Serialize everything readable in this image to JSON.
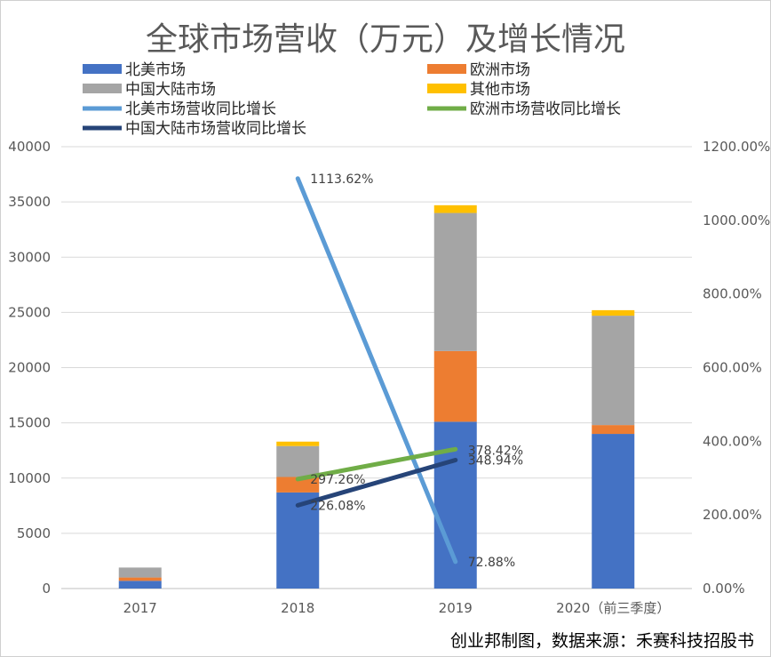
{
  "chart_data": {
    "type": "bar",
    "subtype": "stacked-bar-with-lines",
    "title": "全球市场营收（万元）及增长情况",
    "categories": [
      "2017",
      "2018",
      "2019",
      "2020（前三季度）"
    ],
    "series": [
      {
        "name": "北美市场",
        "kind": "bar",
        "axis": "left",
        "color": "#4472C4",
        "values": [
          700,
          8700,
          15100,
          14000
        ]
      },
      {
        "name": "欧洲市场",
        "kind": "bar",
        "axis": "left",
        "color": "#ED7D31",
        "values": [
          300,
          1400,
          6400,
          800
        ]
      },
      {
        "name": "中国大陆市场",
        "kind": "bar",
        "axis": "left",
        "color": "#A5A5A5",
        "values": [
          900,
          2800,
          12500,
          9900
        ]
      },
      {
        "name": "其他市场",
        "kind": "bar",
        "axis": "left",
        "color": "#FFC000",
        "values": [
          0,
          400,
          700,
          500
        ]
      },
      {
        "name": "北美市场营收同比增长",
        "kind": "line",
        "axis": "right",
        "color": "#5B9BD5",
        "values": [
          null,
          1113.62,
          72.88,
          null
        ],
        "labels": [
          "",
          "1113.62%",
          "72.88%",
          ""
        ]
      },
      {
        "name": "欧洲市场营收同比增长",
        "kind": "line",
        "axis": "right",
        "color": "#70AD47",
        "values": [
          null,
          297.26,
          378.42,
          null
        ],
        "labels": [
          "",
          "297.26%",
          "378.42%",
          ""
        ]
      },
      {
        "name": "中国大陆市场营收同比增长",
        "kind": "line",
        "axis": "right",
        "color": "#264478",
        "values": [
          null,
          226.08,
          348.94,
          null
        ],
        "labels": [
          "",
          "226.08%",
          "348.94%",
          ""
        ]
      }
    ],
    "left_axis": {
      "min": 0,
      "max": 40000,
      "ticks": [
        "0",
        "5000",
        "10000",
        "15000",
        "20000",
        "25000",
        "30000",
        "35000",
        "40000"
      ]
    },
    "right_axis": {
      "min": 0,
      "max": 1200,
      "ticks": [
        "0.00%",
        "200.00%",
        "400.00%",
        "600.00%",
        "800.00%",
        "1000.00%",
        "1200.00%"
      ]
    },
    "grid": true,
    "legend": "top"
  },
  "source_note": "创业邦制图，数据来源：禾赛科技招股书"
}
